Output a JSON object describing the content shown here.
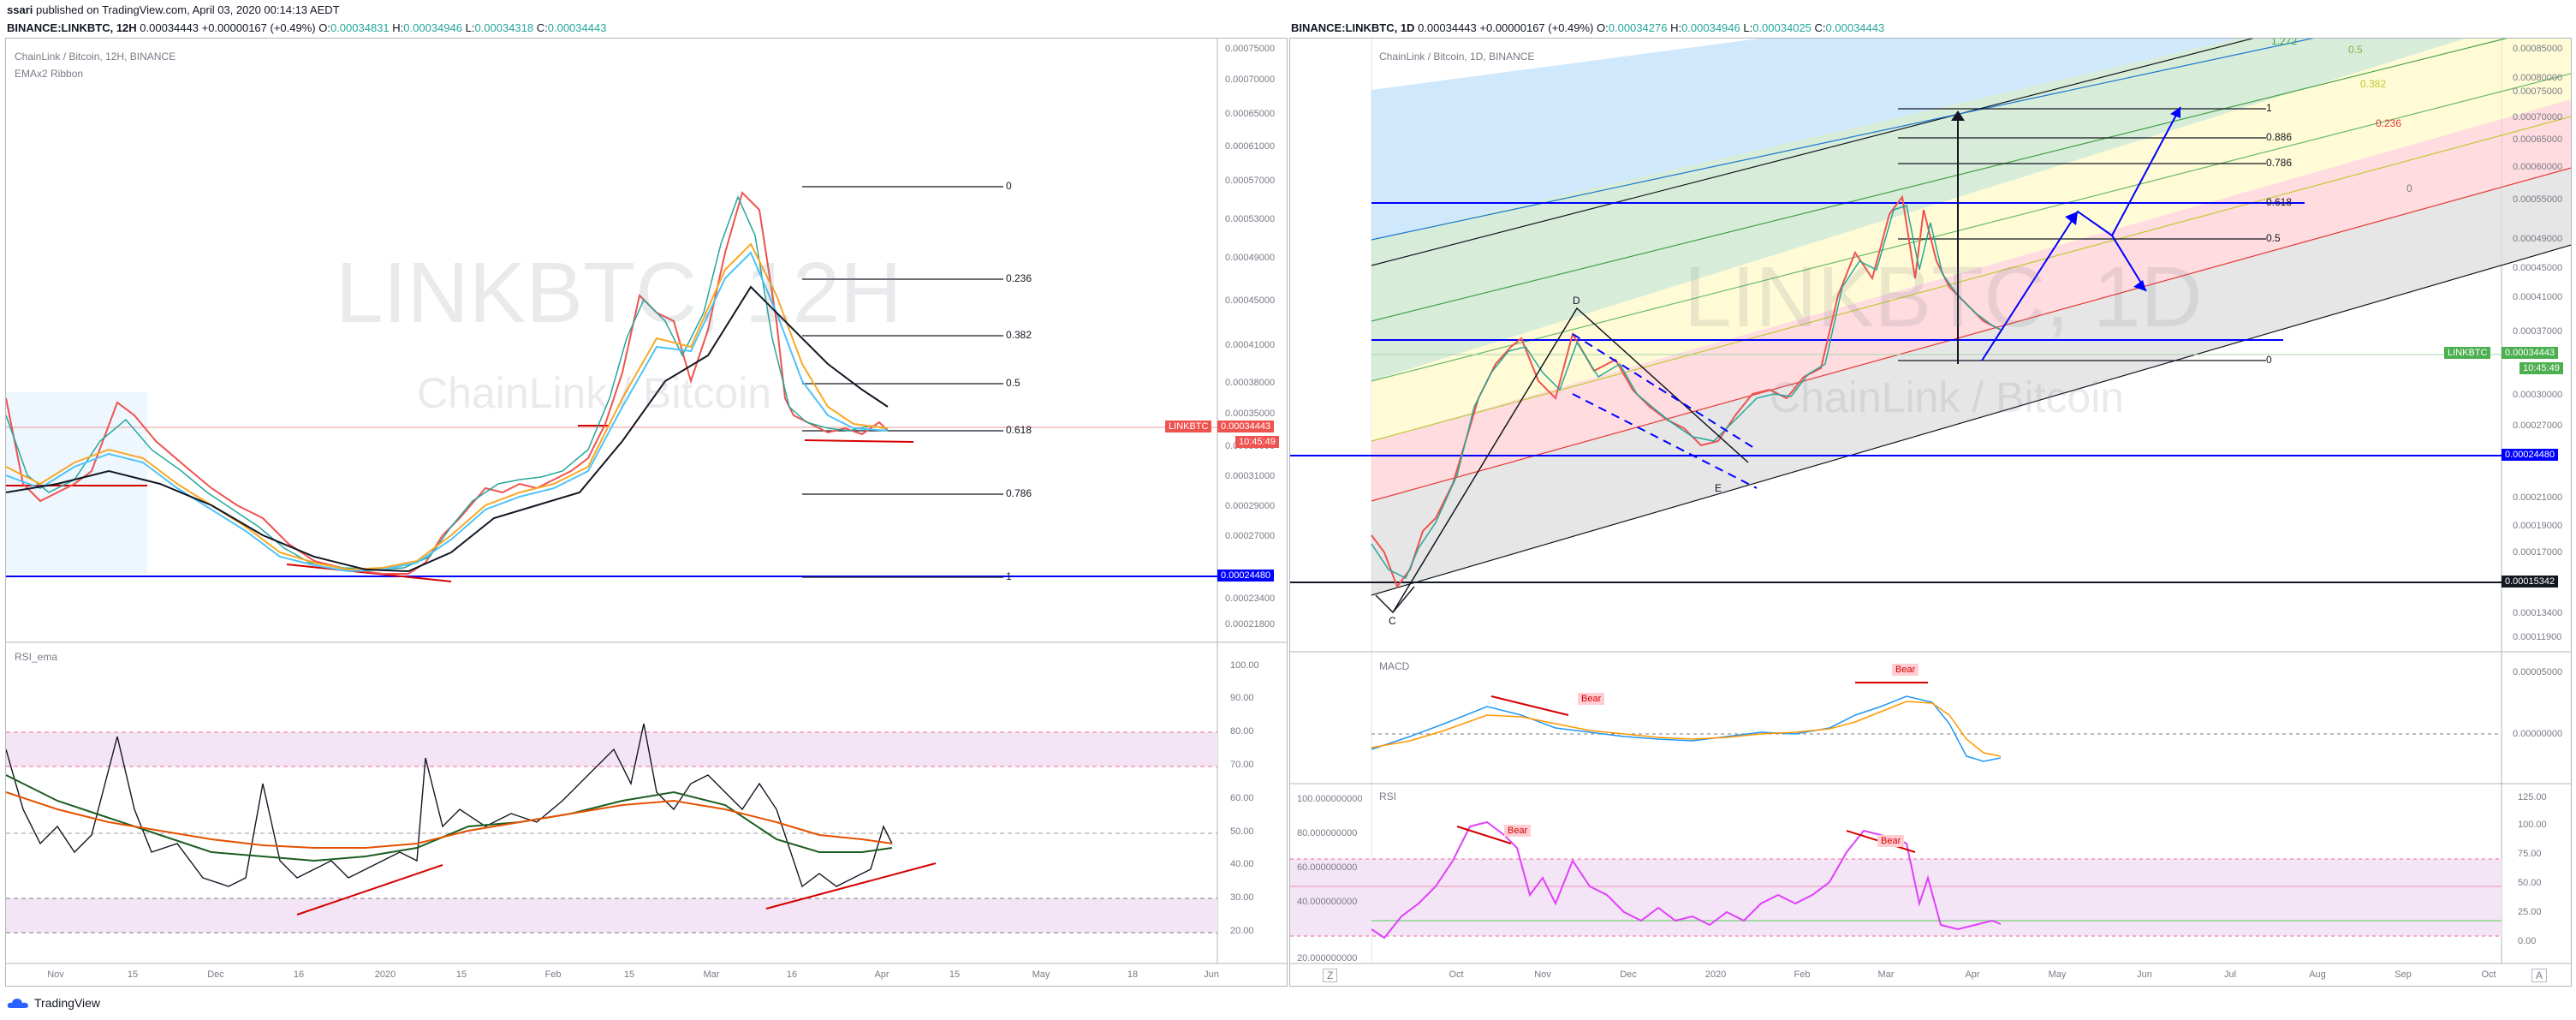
{
  "publisher": {
    "user": "ssari",
    "text": " published on TradingView.com, April 03, 2020 00:14:13 AEDT"
  },
  "left": {
    "header": {
      "symbol": "BINANCE:LINKBTC, 12H",
      "last": "0.00034443",
      "change": "+0.00000167 (+0.49%)",
      "o_label": "O:",
      "o": "0.00034831",
      "h_label": "H:",
      "h": "0.00034946",
      "l_label": "L:",
      "l": "0.00034318",
      "c_label": "C:",
      "c": "0.00034443"
    },
    "legend": {
      "title": "ChainLink / Bitcoin, 12H, BINANCE",
      "indicator": "EMAx2 Ribbon"
    },
    "watermark": {
      "big": "LINKBTC, 12H",
      "small": "ChainLink / Bitcoin"
    },
    "yticks": [
      "0.00075000",
      "0.00070000",
      "0.00065000",
      "0.00061000",
      "0.00057000",
      "0.00053000",
      "0.00049000",
      "0.00045000",
      "0.00041000",
      "0.00038000",
      "0.00035000",
      "0.00033000",
      "0.00031000",
      "0.00029000",
      "0.00027000",
      "0.00025000",
      "0.00023400",
      "0.00021800"
    ],
    "price_tag": {
      "label": "LINKBTC",
      "value": "0.00034443",
      "timer": "10:45:49"
    },
    "line_tag": "0.00024480",
    "fib_levels": [
      "0",
      "0.236",
      "0.382",
      "0.5",
      "0.618",
      "0.786",
      "1"
    ],
    "rsi": {
      "label": "RSI_ema",
      "yticks": [
        "100.00",
        "90.00",
        "80.00",
        "70.00",
        "60.00",
        "50.00",
        "40.00",
        "30.00",
        "20.00"
      ]
    },
    "xticks": [
      "Nov",
      "15",
      "Dec",
      "16",
      "2020",
      "15",
      "Feb",
      "15",
      "Mar",
      "16",
      "Apr",
      "15",
      "May",
      "18",
      "Jun"
    ]
  },
  "right": {
    "header": {
      "symbol": "BINANCE:LINKBTC, 1D",
      "last": "0.00034443",
      "change": "+0.00000167 (+0.49%)",
      "o_label": "O:",
      "o": "0.00034276",
      "h_label": "H:",
      "h": "0.00034946",
      "l_label": "L:",
      "l": "0.00034025",
      "c_label": "C:",
      "c": "0.00034443"
    },
    "legend": {
      "title": "ChainLink / Bitcoin, 1D, BINANCE"
    },
    "watermark": {
      "big": "LINKBTC, 1D",
      "small": "ChainLink / Bitcoin"
    },
    "yticks": [
      "0.00085000",
      "0.00080000",
      "0.00075000",
      "0.00070000",
      "0.00065000",
      "0.00060000",
      "0.00055000",
      "0.00049000",
      "0.00045000",
      "0.00041000",
      "0.00037000",
      "0.00033000",
      "0.00030000",
      "0.00027000",
      "0.00024000",
      "0.00021000",
      "0.00019000",
      "0.00017000",
      "0.00015000",
      "0.00013400",
      "0.00011900"
    ],
    "price_tag": {
      "label": "LINKBTC",
      "value": "0.00034443",
      "timer": "10:45:49"
    },
    "line_tag_blue": "0.00024480",
    "line_tag_black": "0.00015342",
    "fib_levels": [
      "1",
      "0.886",
      "0.786",
      "0.618",
      "0.5",
      "0"
    ],
    "pitchfork_levels": [
      "1.272",
      "0.5",
      "0.382",
      "0.236",
      "0"
    ],
    "points": [
      "C",
      "D",
      "E"
    ],
    "macd": {
      "label": "MACD",
      "yticks": [
        "0.00005000",
        "0.00000000"
      ],
      "bear": "Bear"
    },
    "rsi": {
      "label": "RSI",
      "yticks": [
        "100.000000000",
        "80.000000000",
        "60.000000000",
        "40.000000000",
        "20.000000000"
      ],
      "yticks_right": [
        "125.00",
        "100.00",
        "75.00",
        "50.00",
        "25.00",
        "0.00"
      ],
      "bear": "Bear"
    },
    "xticks": [
      "Oct",
      "Nov",
      "Dec",
      "2020",
      "Feb",
      "Mar",
      "Apr",
      "May",
      "Jun",
      "Jul",
      "Aug",
      "Sep",
      "Oct"
    ],
    "corner_left": "Z",
    "corner_right": "A"
  },
  "footer": {
    "brand": "TradingView"
  },
  "colors": {
    "red": "#ef5350",
    "blue": "#0000ff",
    "fib_text": "#131722"
  },
  "chart_data": [
    {
      "type": "line",
      "title": "ChainLink / Bitcoin, 12H, BINANCE",
      "xlabel": "",
      "ylabel": "",
      "x": [
        "Nov",
        "15",
        "Dec",
        "16",
        "2020",
        "15",
        "Feb",
        "15",
        "Mar",
        "16",
        "Apr"
      ],
      "series": [
        {
          "values": [
            0.00031,
            0.00036,
            0.00029,
            0.00026,
            0.00024,
            0.00028,
            0.0003,
            0.00045,
            0.00049,
            0.00035,
            0.00034443
          ]
        }
      ],
      "ylim": [
        0.000218,
        0.00075
      ]
    },
    {
      "type": "line",
      "title": "ChainLink / Bitcoin, 1D, BINANCE",
      "xlabel": "",
      "ylabel": "",
      "x": [
        "Oct",
        "Nov",
        "Dec",
        "2020",
        "Feb",
        "Mar",
        "Apr"
      ],
      "series": [
        {
          "values": [
            0.00017,
            0.00033,
            0.00027,
            0.00025,
            0.00041,
            0.00055,
            0.00034443
          ]
        }
      ],
      "ylim": [
        0.000119,
        0.00085
      ]
    }
  ]
}
